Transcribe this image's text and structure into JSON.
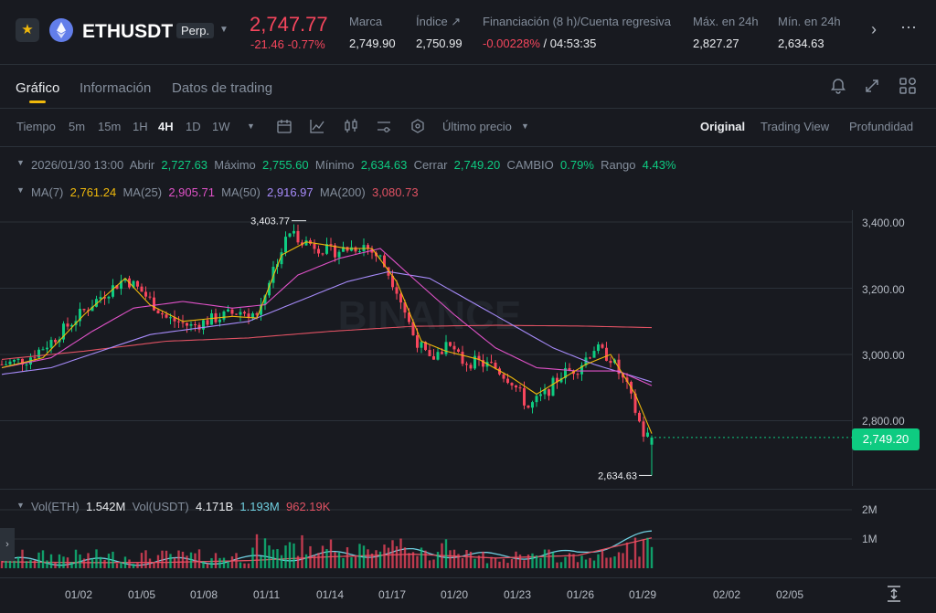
{
  "header": {
    "symbol": "ETHUSDT",
    "contract_type": "Perp.",
    "last_price": "2,747.77",
    "change": "-21.46 -0.77%",
    "stats": [
      {
        "label": "Marca",
        "value": "2,749.90"
      },
      {
        "label": "Índice ↗",
        "value": "2,750.99"
      },
      {
        "label": "Financiación (8 h)/Cuenta regresiva",
        "value": "-0.00228%",
        "value2": " / 04:53:35"
      },
      {
        "label": "Máx. en 24h",
        "value": "2,827.27"
      },
      {
        "label": "Mín. en 24h",
        "value": "2,634.63"
      }
    ]
  },
  "tabs": [
    "Gráfico",
    "Información",
    "Datos de trading"
  ],
  "toolbar": {
    "time_label": "Tiempo",
    "intervals": [
      "5m",
      "15m",
      "1H",
      "4H",
      "1D",
      "1W"
    ],
    "active_interval": "4H",
    "price_type": "Último precio",
    "views": [
      "Original",
      "Trading View",
      "Profundidad"
    ],
    "active_view": "Original"
  },
  "ohlc": {
    "date": "2026/01/30 13:00",
    "open_label": "Abrir",
    "open": "2,727.63",
    "high_label": "Máximo",
    "high": "2,755.60",
    "low_label": "Mínimo",
    "low": "2,634.63",
    "close_label": "Cerrar",
    "close": "2,749.20",
    "change_label": "CAMBIO",
    "change": "0.79%",
    "range_label": "Rango",
    "range": "4.43%"
  },
  "ma": [
    {
      "label": "MA(7)",
      "value": "2,761.24",
      "color": "#f0b90b"
    },
    {
      "label": "MA(25)",
      "value": "2,905.71",
      "color": "#e052c8"
    },
    {
      "label": "MA(50)",
      "value": "2,916.97",
      "color": "#a78bfa"
    },
    {
      "label": "MA(200)",
      "value": "3,080.73",
      "color": "#e05263"
    }
  ],
  "volume": {
    "eth_label": "Vol(ETH)",
    "eth": "1.542M",
    "usdt_label": "Vol(USDT)",
    "usdt": "4.171B",
    "ma1": "1.193M",
    "ma2": "962.19K"
  },
  "price_axis": [
    "3,400.00",
    "3,200.00",
    "3,000.00",
    "2,800.00"
  ],
  "volume_axis": [
    "2M",
    "1M"
  ],
  "date_axis": [
    "01/02",
    "01/05",
    "01/08",
    "01/11",
    "01/14",
    "01/17",
    "01/20",
    "01/23",
    "01/26",
    "01/29",
    "02/02",
    "02/05"
  ],
  "current_price_badge": "2,749.20",
  "high_marker": "3,403.77",
  "low_marker": "2,634.63",
  "watermark": "BINANCE",
  "colors": {
    "up": "#0ecb81",
    "down": "#f6465d",
    "accent": "#f0b90b"
  },
  "chart_data": {
    "type": "candlestick",
    "interval": "4H",
    "ylim": [
      2630,
      3450
    ],
    "anchors": [
      [
        0,
        2970
      ],
      [
        6,
        2985
      ],
      [
        12,
        3040
      ],
      [
        18,
        3110
      ],
      [
        24,
        3175
      ],
      [
        30,
        3230
      ],
      [
        34,
        3190
      ],
      [
        40,
        3110
      ],
      [
        46,
        3085
      ],
      [
        52,
        3110
      ],
      [
        58,
        3130
      ],
      [
        62,
        3120
      ],
      [
        66,
        3260
      ],
      [
        70,
        3370
      ],
      [
        74,
        3340
      ],
      [
        80,
        3310
      ],
      [
        88,
        3330
      ],
      [
        92,
        3290
      ],
      [
        96,
        3200
      ],
      [
        100,
        3060
      ],
      [
        104,
        2980
      ],
      [
        108,
        3030
      ],
      [
        112,
        2980
      ],
      [
        116,
        2975
      ],
      [
        120,
        2960
      ],
      [
        124,
        2920
      ],
      [
        128,
        2840
      ],
      [
        132,
        2880
      ],
      [
        136,
        2940
      ],
      [
        140,
        2960
      ],
      [
        144,
        3020
      ],
      [
        148,
        2990
      ],
      [
        152,
        2900
      ],
      [
        156,
        2760
      ],
      [
        158,
        2749
      ]
    ],
    "ma7": [
      [
        0,
        2960
      ],
      [
        10,
        2990
      ],
      [
        20,
        3120
      ],
      [
        30,
        3230
      ],
      [
        36,
        3150
      ],
      [
        44,
        3100
      ],
      [
        56,
        3115
      ],
      [
        62,
        3110
      ],
      [
        68,
        3300
      ],
      [
        74,
        3340
      ],
      [
        84,
        3320
      ],
      [
        90,
        3320
      ],
      [
        96,
        3220
      ],
      [
        102,
        3040
      ],
      [
        108,
        3010
      ],
      [
        116,
        2985
      ],
      [
        124,
        2930
      ],
      [
        130,
        2880
      ],
      [
        136,
        2925
      ],
      [
        142,
        2970
      ],
      [
        148,
        3000
      ],
      [
        154,
        2880
      ],
      [
        158,
        2761
      ]
    ],
    "ma25": [
      [
        0,
        2960
      ],
      [
        12,
        2990
      ],
      [
        22,
        3070
      ],
      [
        32,
        3140
      ],
      [
        44,
        3160
      ],
      [
        56,
        3140
      ],
      [
        64,
        3150
      ],
      [
        72,
        3240
      ],
      [
        82,
        3290
      ],
      [
        92,
        3320
      ],
      [
        100,
        3230
      ],
      [
        110,
        3120
      ],
      [
        120,
        3020
      ],
      [
        130,
        2960
      ],
      [
        140,
        2950
      ],
      [
        150,
        2950
      ],
      [
        158,
        2906
      ]
    ],
    "ma50": [
      [
        0,
        2940
      ],
      [
        12,
        2960
      ],
      [
        24,
        3010
      ],
      [
        36,
        3060
      ],
      [
        48,
        3080
      ],
      [
        60,
        3100
      ],
      [
        72,
        3160
      ],
      [
        84,
        3220
      ],
      [
        94,
        3250
      ],
      [
        104,
        3230
      ],
      [
        114,
        3160
      ],
      [
        124,
        3090
      ],
      [
        134,
        3020
      ],
      [
        144,
        2970
      ],
      [
        152,
        2940
      ],
      [
        158,
        2917
      ]
    ],
    "ma200": [
      [
        0,
        2985
      ],
      [
        20,
        3010
      ],
      [
        40,
        3040
      ],
      [
        60,
        3050
      ],
      [
        80,
        3070
      ],
      [
        100,
        3085
      ],
      [
        120,
        3088
      ],
      [
        140,
        3086
      ],
      [
        158,
        3081
      ]
    ],
    "volume_ma": [
      [
        0,
        0.25
      ],
      [
        20,
        0.22
      ],
      [
        40,
        0.23
      ],
      [
        60,
        0.3
      ],
      [
        80,
        0.45
      ],
      [
        100,
        0.55
      ],
      [
        120,
        0.4
      ],
      [
        140,
        0.5
      ],
      [
        158,
        1.19
      ]
    ]
  }
}
